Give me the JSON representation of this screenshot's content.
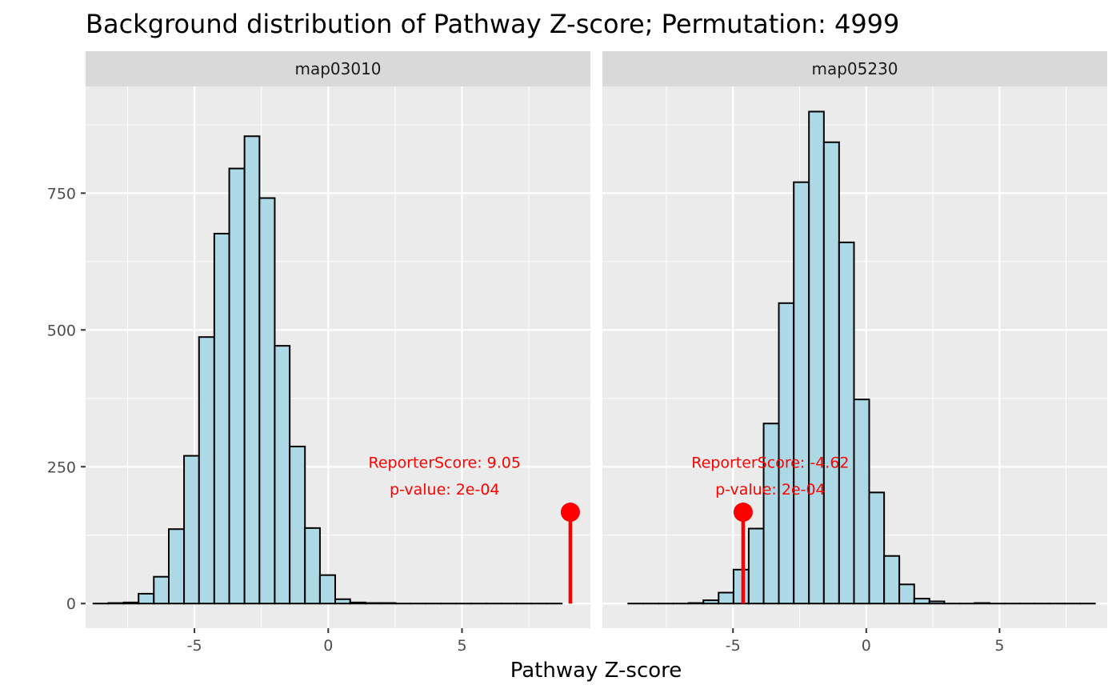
{
  "chart_data": {
    "type": "bar",
    "title": "Background distribution of Pathway Z-score; Permutation: 4999",
    "xlabel": "Pathway Z-score",
    "ylabel": "",
    "y_ticks": [
      0,
      250,
      500,
      750
    ],
    "x_ticks": [
      -5,
      0,
      5
    ],
    "ylim": [
      -45,
      945
    ],
    "grid": true,
    "bar_fill": "#add8e6",
    "bar_stroke": "#000000",
    "panel_bg": "#ebebeb",
    "strip_bg": "#d9d9d9",
    "marker_color": "#ff0000",
    "panels": [
      {
        "strip": "map03010",
        "xlim": [
          -9.07,
          9.8
        ],
        "bins": [
          {
            "x0": -8.78,
            "x1": -8.22,
            "count": 0
          },
          {
            "x0": -8.22,
            "x1": -7.65,
            "count": 1
          },
          {
            "x0": -7.65,
            "x1": -7.09,
            "count": 2
          },
          {
            "x0": -7.09,
            "x1": -6.52,
            "count": 18
          },
          {
            "x0": -6.52,
            "x1": -5.96,
            "count": 49
          },
          {
            "x0": -5.96,
            "x1": -5.39,
            "count": 136
          },
          {
            "x0": -5.39,
            "x1": -4.83,
            "count": 270
          },
          {
            "x0": -4.83,
            "x1": -4.26,
            "count": 487
          },
          {
            "x0": -4.26,
            "x1": -3.7,
            "count": 676
          },
          {
            "x0": -3.7,
            "x1": -3.13,
            "count": 795
          },
          {
            "x0": -3.13,
            "x1": -2.57,
            "count": 854
          },
          {
            "x0": -2.57,
            "x1": -2.0,
            "count": 741
          },
          {
            "x0": -2.0,
            "x1": -1.44,
            "count": 471
          },
          {
            "x0": -1.44,
            "x1": -0.87,
            "count": 287
          },
          {
            "x0": -0.87,
            "x1": -0.31,
            "count": 138
          },
          {
            "x0": -0.31,
            "x1": 0.26,
            "count": 52
          },
          {
            "x0": 0.26,
            "x1": 0.82,
            "count": 8
          },
          {
            "x0": 0.82,
            "x1": 1.39,
            "count": 2
          },
          {
            "x0": 1.39,
            "x1": 1.95,
            "count": 1
          },
          {
            "x0": 1.95,
            "x1": 2.52,
            "count": 1
          },
          {
            "x0": 2.52,
            "x1": 3.08,
            "count": 0
          },
          {
            "x0": 3.08,
            "x1": 3.65,
            "count": 0
          },
          {
            "x0": 3.65,
            "x1": 4.21,
            "count": 0
          },
          {
            "x0": 4.21,
            "x1": 4.78,
            "count": 0
          },
          {
            "x0": 4.78,
            "x1": 5.34,
            "count": 0
          },
          {
            "x0": 5.34,
            "x1": 5.91,
            "count": 0
          },
          {
            "x0": 5.91,
            "x1": 6.47,
            "count": 0
          },
          {
            "x0": 6.47,
            "x1": 7.04,
            "count": 0
          },
          {
            "x0": 7.04,
            "x1": 7.6,
            "count": 0
          },
          {
            "x0": 7.6,
            "x1": 8.17,
            "count": 0
          },
          {
            "x0": 8.17,
            "x1": 8.73,
            "count": 0
          }
        ],
        "reporter_score": 9.05,
        "marker_height": 167,
        "annotation": {
          "line1": "ReporterScore: 9.05",
          "line2": "p-value: 2e-04",
          "x": 4.35,
          "y1": 256,
          "y2": 207
        }
      },
      {
        "strip": "map05230",
        "xlim": [
          -9.9,
          9.04
        ],
        "bins": [
          {
            "x0": -8.93,
            "x1": -8.37,
            "count": 0
          },
          {
            "x0": -8.37,
            "x1": -7.8,
            "count": 0
          },
          {
            "x0": -7.8,
            "x1": -7.24,
            "count": 0
          },
          {
            "x0": -7.24,
            "x1": -6.67,
            "count": 0
          },
          {
            "x0": -6.67,
            "x1": -6.11,
            "count": 1
          },
          {
            "x0": -6.11,
            "x1": -5.54,
            "count": 6
          },
          {
            "x0": -5.54,
            "x1": -4.98,
            "count": 20
          },
          {
            "x0": -4.98,
            "x1": -4.41,
            "count": 62
          },
          {
            "x0": -4.41,
            "x1": -3.85,
            "count": 137
          },
          {
            "x0": -3.85,
            "x1": -3.28,
            "count": 329
          },
          {
            "x0": -3.28,
            "x1": -2.72,
            "count": 549
          },
          {
            "x0": -2.72,
            "x1": -2.15,
            "count": 770
          },
          {
            "x0": -2.15,
            "x1": -1.59,
            "count": 899
          },
          {
            "x0": -1.59,
            "x1": -1.02,
            "count": 843
          },
          {
            "x0": -1.02,
            "x1": -0.46,
            "count": 660
          },
          {
            "x0": -0.46,
            "x1": 0.11,
            "count": 373
          },
          {
            "x0": 0.11,
            "x1": 0.67,
            "count": 203
          },
          {
            "x0": 0.67,
            "x1": 1.24,
            "count": 87
          },
          {
            "x0": 1.24,
            "x1": 1.8,
            "count": 35
          },
          {
            "x0": 1.8,
            "x1": 2.37,
            "count": 9
          },
          {
            "x0": 2.37,
            "x1": 2.93,
            "count": 4
          },
          {
            "x0": 2.93,
            "x1": 3.5,
            "count": 0
          },
          {
            "x0": 3.5,
            "x1": 4.06,
            "count": 0
          },
          {
            "x0": 4.06,
            "x1": 4.63,
            "count": 1
          },
          {
            "x0": 4.63,
            "x1": 5.19,
            "count": 0
          },
          {
            "x0": 5.19,
            "x1": 5.76,
            "count": 0
          },
          {
            "x0": 5.76,
            "x1": 6.32,
            "count": 0
          },
          {
            "x0": 6.32,
            "x1": 6.89,
            "count": 0
          },
          {
            "x0": 6.89,
            "x1": 7.45,
            "count": 0
          },
          {
            "x0": 7.45,
            "x1": 8.02,
            "count": 0
          },
          {
            "x0": 8.02,
            "x1": 8.58,
            "count": 0
          }
        ],
        "reporter_score": -4.62,
        "marker_height": 167,
        "annotation": {
          "line1": "ReporterScore: -4.62",
          "line2": "p-value: 2e-04",
          "x": -3.6,
          "y1": 256,
          "y2": 207
        }
      }
    ]
  }
}
